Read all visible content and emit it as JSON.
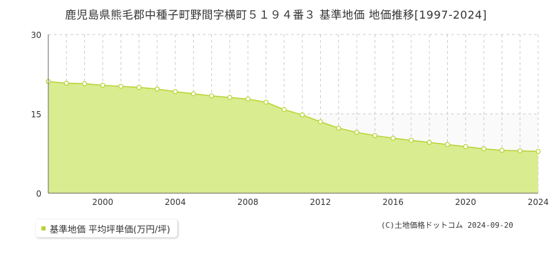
{
  "chart_data": {
    "type": "area",
    "title": "鹿児島県熊毛郡中種子町野間字横町５１９４番３ 基準地価 地価推移[1997-2024]",
    "xlim": [
      1997,
      2024
    ],
    "ylim": [
      0,
      30
    ],
    "x_ticks": [
      2000,
      2004,
      2008,
      2012,
      2016,
      2020,
      2024
    ],
    "y_ticks": [
      0,
      15,
      30
    ],
    "grid": true,
    "series": [
      {
        "name": "基準地価 平均坪単価(万円/坪)",
        "color": "#b7d332",
        "fill": "#d9ec8f",
        "x": [
          1997,
          1998,
          1999,
          2000,
          2001,
          2002,
          2003,
          2004,
          2005,
          2006,
          2007,
          2008,
          2009,
          2010,
          2011,
          2012,
          2013,
          2014,
          2015,
          2016,
          2017,
          2018,
          2019,
          2020,
          2021,
          2022,
          2023,
          2024
        ],
        "values": [
          21.1,
          20.8,
          20.7,
          20.4,
          20.2,
          20.0,
          19.7,
          19.2,
          18.8,
          18.4,
          18.1,
          17.8,
          17.2,
          15.8,
          14.8,
          13.5,
          12.3,
          11.5,
          10.9,
          10.4,
          10.0,
          9.6,
          9.2,
          8.8,
          8.4,
          8.1,
          8.0,
          7.9
        ]
      }
    ],
    "legend_label": "基準地価 平均坪単価(万円/坪)",
    "copyright": "(C)土地価格ドットコム 2024-09-20"
  }
}
